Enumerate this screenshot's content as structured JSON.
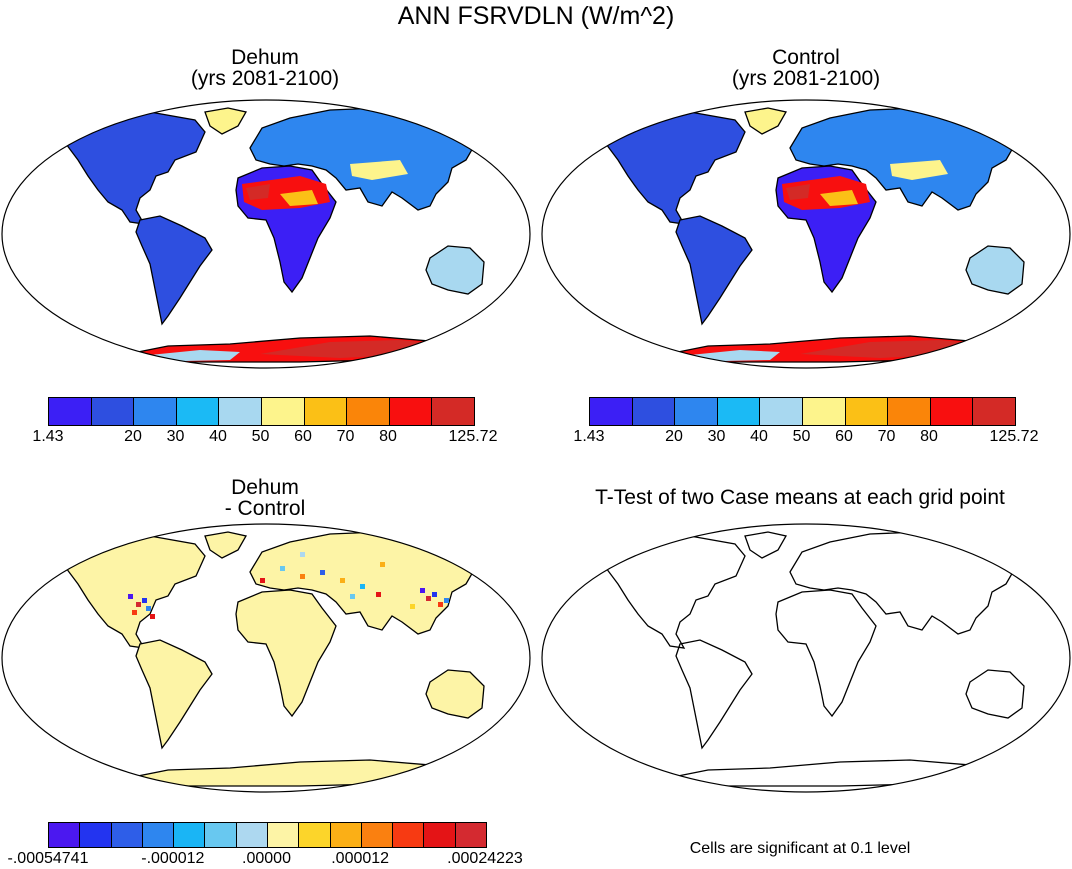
{
  "title": "ANN FSRVDLN (W/m^2)",
  "panels": {
    "dehum": {
      "title_line1": "Dehum",
      "title_line2": "(yrs 2081-2100)"
    },
    "control": {
      "title_line1": "Control",
      "title_line2": "(yrs 2081-2100)"
    },
    "diff": {
      "title_line1": "Dehum",
      "title_line2": "- Control"
    },
    "ttest": {
      "title": "T-Test of two Case means at each grid point",
      "note": "Cells are significant at 0.1 level"
    }
  },
  "colorbars": {
    "absolute": {
      "colors": [
        "#3c1ff5",
        "#2e4fe0",
        "#2e86ef",
        "#1bbaf5",
        "#a8d8f0",
        "#fdf48c",
        "#fbc016",
        "#fa8509",
        "#f80f0f",
        "#d42a26"
      ],
      "labels": [
        "1.43",
        "20",
        "30",
        "40",
        "50",
        "60",
        "70",
        "80",
        "125.72"
      ]
    },
    "difference": {
      "colors": [
        "#4b18f0",
        "#2334f0",
        "#2e5ee8",
        "#2e86ef",
        "#1ab5f5",
        "#68c8f0",
        "#add8f0",
        "#fdf4a6",
        "#fcd52a",
        "#fbaf16",
        "#fa8010",
        "#f73a12",
        "#e41416",
        "#d42a30"
      ],
      "labels": [
        "-.00054741",
        "-.000012",
        ".00000",
        ".000012",
        ".00024223"
      ]
    }
  }
}
